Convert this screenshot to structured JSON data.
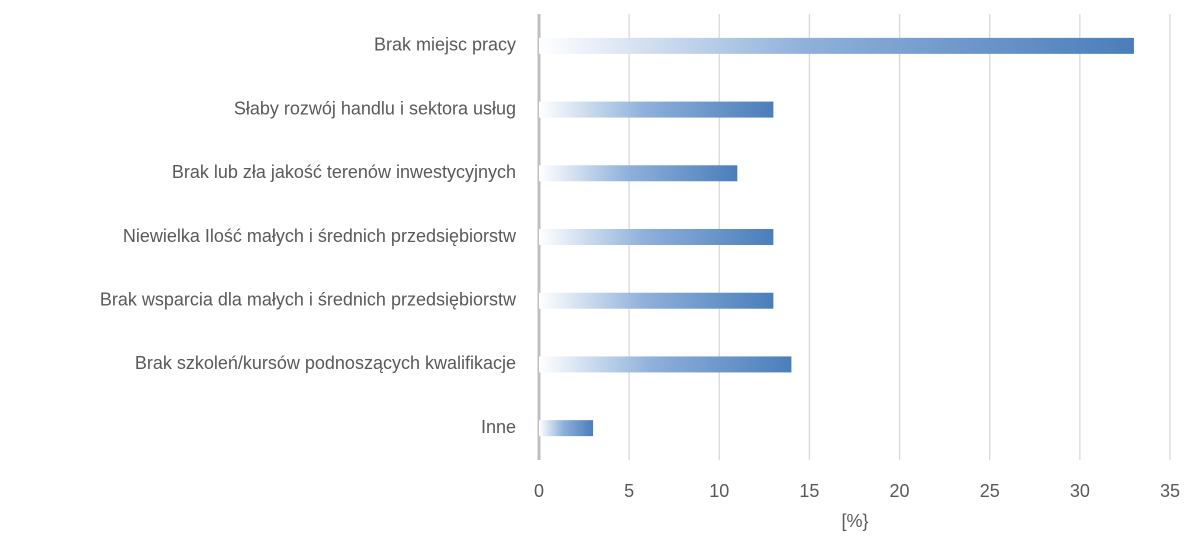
{
  "chart_data": {
    "type": "bar",
    "orientation": "horizontal",
    "x_label": "[%}",
    "categories": [
      "Brak miejsc pracy",
      "Słaby rozwój handlu i sektora usług",
      "Brak lub zła jakość terenów inwestycyjnych",
      "Niewielka Ilość małych i średnich przedsiębiorstw",
      "Brak wsparcia dla małych i średnich przedsiębiorstw",
      "Brak szkoleń/kursów podnoszących kwalifikacje",
      "Inne"
    ],
    "values": [
      33,
      13,
      11,
      13,
      13,
      14,
      3
    ],
    "color": "#4a7ebb",
    "xlim": [
      0,
      35
    ],
    "xticks": [
      0,
      5,
      10,
      15,
      20,
      25,
      30,
      35
    ],
    "grid": true
  }
}
